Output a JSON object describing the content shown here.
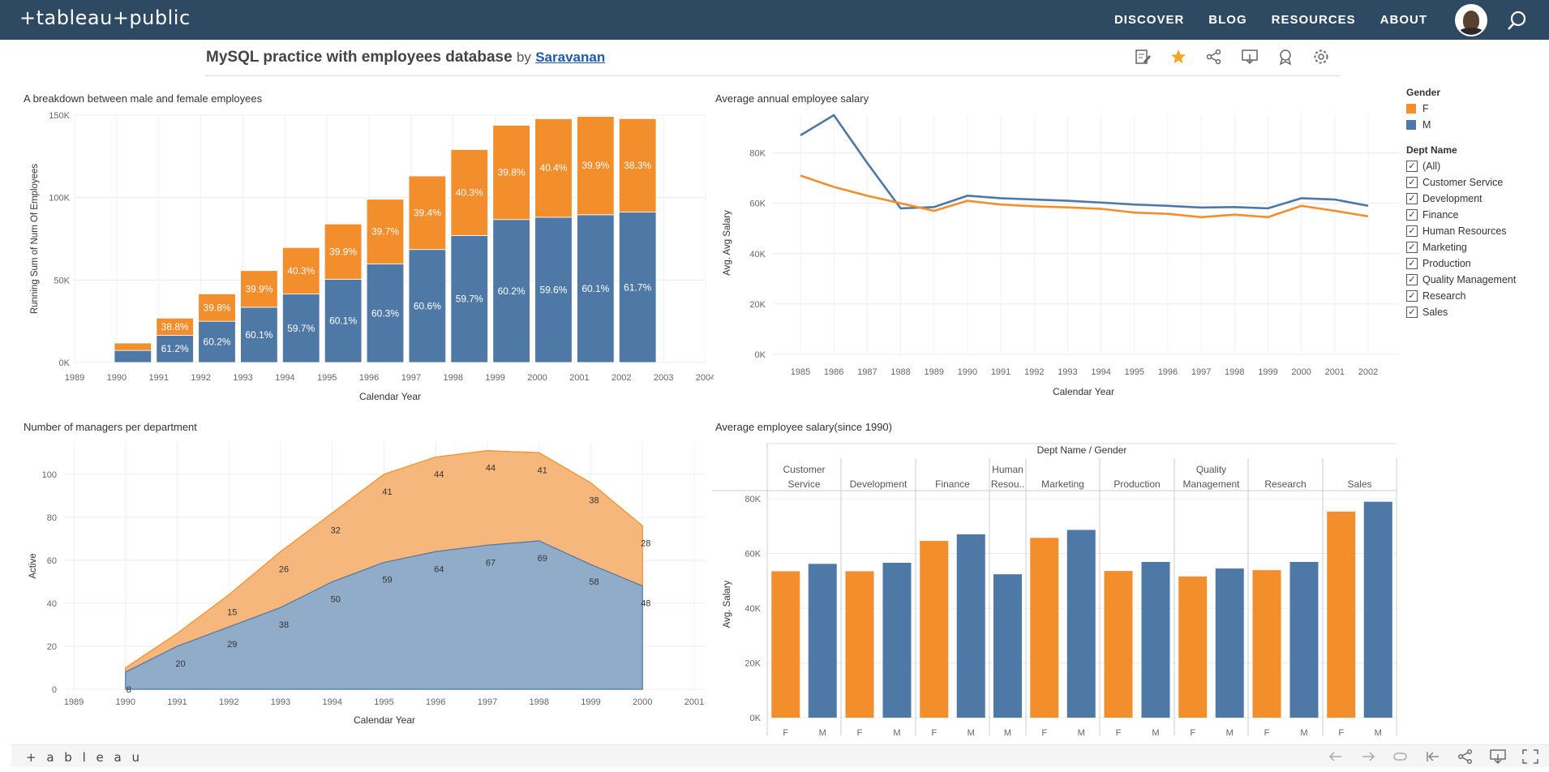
{
  "header": {
    "logo": "+tableau+public",
    "nav": [
      "DISCOVER",
      "BLOG",
      "RESOURCES",
      "ABOUT"
    ]
  },
  "viz": {
    "title": "MySQL practice with employees database",
    "by": "by",
    "author": "Saravanan"
  },
  "colors": {
    "female": "#f28e2b",
    "male": "#4e79a7",
    "nav_bg": "#2e4a62"
  },
  "legend": {
    "gender_title": "Gender",
    "gender_items": [
      "F",
      "M"
    ],
    "dept_title": "Dept Name",
    "dept_items": [
      "(All)",
      "Customer Service",
      "Development",
      "Finance",
      "Human Resources",
      "Marketing",
      "Production",
      "Quality Management",
      "Research",
      "Sales"
    ]
  },
  "footer": {
    "logo": "+ a b l e a u"
  },
  "chart_data": [
    {
      "id": "gender_breakdown",
      "type": "bar",
      "title": "A breakdown between male and female employees",
      "xlabel": "Calendar Year",
      "ylabel": "Running Sum of Num Of Employees",
      "x_ticks": [
        "1989",
        "1990",
        "1991",
        "1992",
        "1993",
        "1994",
        "1995",
        "1996",
        "1997",
        "1998",
        "1999",
        "2000",
        "2001",
        "2002",
        "2003",
        "2004"
      ],
      "y_ticks": [
        "0K",
        "50K",
        "100K",
        "150K"
      ],
      "ylim": [
        0,
        150000
      ],
      "categories": [
        "1990",
        "1991",
        "1992",
        "1993",
        "1994",
        "1995",
        "1996",
        "1997",
        "1998",
        "1999",
        "2000",
        "2001",
        "2002"
      ],
      "series": [
        {
          "name": "M",
          "values": [
            7300,
            16500,
            25000,
            33500,
            41500,
            50500,
            59700,
            68500,
            77000,
            86700,
            88100,
            89600,
            91200
          ],
          "labels": [
            "",
            "61.2%",
            "60.2%",
            "60.1%",
            "59.7%",
            "60.1%",
            "60.3%",
            "60.6%",
            "59.7%",
            "60.2%",
            "59.6%",
            "60.1%",
            "61.7%"
          ]
        },
        {
          "name": "F",
          "values": [
            4500,
            10400,
            16600,
            22200,
            28200,
            33500,
            39300,
            44600,
            52100,
            57100,
            59700,
            59600,
            56700
          ],
          "labels": [
            "",
            "38.8%",
            "39.8%",
            "39.9%",
            "40.3%",
            "39.9%",
            "39.7%",
            "39.4%",
            "40.3%",
            "39.8%",
            "40.4%",
            "39.9%",
            "38.3%"
          ]
        }
      ]
    },
    {
      "id": "avg_annual_salary",
      "type": "line",
      "title": "Average annual employee salary",
      "xlabel": "",
      "ylabel": "Avg. Avg Salary",
      "x": [
        "1985",
        "1986",
        "1987",
        "1988",
        "1989",
        "1990",
        "1991",
        "1992",
        "1993",
        "1994",
        "1995",
        "1996",
        "1997",
        "1998",
        "1999",
        "2000",
        "2001",
        "2002"
      ],
      "y_ticks": [
        "0K",
        "20K",
        "40K",
        "60K",
        "80K"
      ],
      "ylim": [
        0,
        95000
      ],
      "series": [
        {
          "name": "M",
          "values": [
            87000,
            95000,
            76000,
            58000,
            58500,
            63000,
            62000,
            61500,
            61000,
            60300,
            59500,
            59000,
            58300,
            58500,
            58000,
            62000,
            61500,
            59000
          ]
        },
        {
          "name": "F",
          "values": [
            71000,
            66500,
            63000,
            60000,
            57000,
            61000,
            59500,
            58800,
            58400,
            57800,
            56300,
            55800,
            54500,
            55500,
            54500,
            59000,
            57000,
            54800
          ]
        }
      ]
    },
    {
      "id": "managers_per_dept",
      "type": "area",
      "title": "Number of managers per department",
      "xlabel": "Calendar Year",
      "ylabel": "Active",
      "x_ticks": [
        "1989",
        "1990",
        "1991",
        "1992",
        "1993",
        "1994",
        "1995",
        "1996",
        "1997",
        "1998",
        "1999",
        "2000",
        "2001"
      ],
      "y_ticks": [
        "0",
        "20",
        "40",
        "60",
        "80",
        "100"
      ],
      "ylim": [
        0,
        115
      ],
      "x": [
        "1990",
        "1991",
        "1992",
        "1993",
        "1994",
        "1995",
        "1996",
        "1997",
        "1998",
        "1999",
        "2000"
      ],
      "series": [
        {
          "name": "M",
          "values": [
            8,
            20,
            29,
            38,
            50,
            59,
            64,
            67,
            69,
            58,
            48
          ],
          "labels": [
            "8",
            "20",
            "29",
            "38",
            "50",
            "59",
            "64",
            "67",
            "69",
            "58",
            "48"
          ]
        },
        {
          "name": "F",
          "values": [
            2,
            6,
            15,
            26,
            32,
            41,
            44,
            44,
            41,
            38,
            28
          ],
          "labels": [
            "",
            "",
            "15",
            "26",
            "32",
            "41",
            "44",
            "44",
            "41",
            "38",
            "28"
          ]
        }
      ]
    },
    {
      "id": "avg_salary_since_1990",
      "type": "bar",
      "title": "Average employee salary(since 1990)",
      "header": "Dept Name / Gender",
      "ylabel": "Avg. Salary",
      "y_ticks": [
        "0K",
        "20K",
        "40K",
        "60K",
        "80K"
      ],
      "ylim": [
        0,
        80000
      ],
      "departments": [
        {
          "name": "Customer Service",
          "bars": [
            {
              "g": "F",
              "v": 53500
            },
            {
              "g": "M",
              "v": 56200
            }
          ]
        },
        {
          "name": "Development",
          "bars": [
            {
              "g": "F",
              "v": 53500
            },
            {
              "g": "M",
              "v": 56600
            }
          ]
        },
        {
          "name": "Finance",
          "bars": [
            {
              "g": "F",
              "v": 64600
            },
            {
              "g": "M",
              "v": 67000
            }
          ]
        },
        {
          "name": "Human Resou..",
          "bars": [
            {
              "g": "M",
              "v": 52400
            }
          ]
        },
        {
          "name": "Marketing",
          "bars": [
            {
              "g": "F",
              "v": 65700
            },
            {
              "g": "M",
              "v": 68600
            }
          ]
        },
        {
          "name": "Production",
          "bars": [
            {
              "g": "F",
              "v": 53600
            },
            {
              "g": "M",
              "v": 56900
            }
          ]
        },
        {
          "name": "Quality Management",
          "bars": [
            {
              "g": "F",
              "v": 51600
            },
            {
              "g": "M",
              "v": 54500
            }
          ]
        },
        {
          "name": "Research",
          "bars": [
            {
              "g": "F",
              "v": 53900
            },
            {
              "g": "M",
              "v": 56900
            }
          ]
        },
        {
          "name": "Sales",
          "bars": [
            {
              "g": "F",
              "v": 75300
            },
            {
              "g": "M",
              "v": 78900
            }
          ]
        }
      ]
    }
  ]
}
